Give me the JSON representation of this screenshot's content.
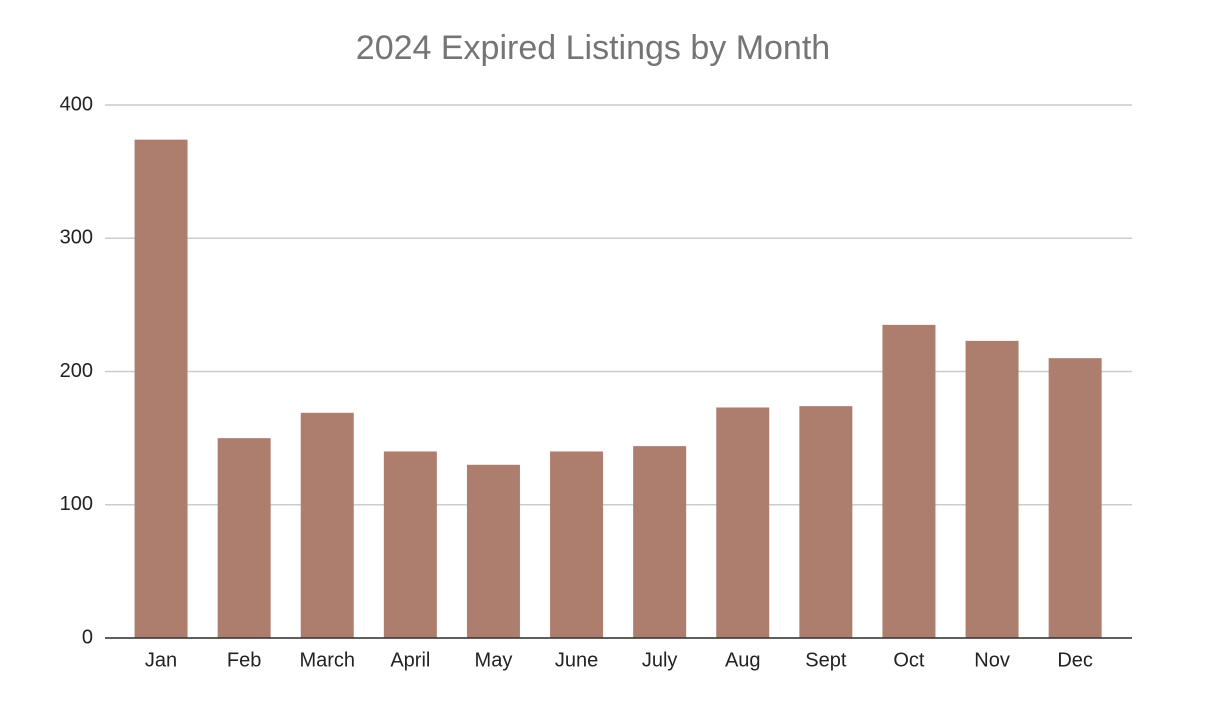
{
  "chart_data": {
    "type": "bar",
    "title": "2024 Expired Listings by Month",
    "categories": [
      "Jan",
      "Feb",
      "March",
      "April",
      "May",
      "June",
      "July",
      "Aug",
      "Sept",
      "Oct",
      "Nov",
      "Dec"
    ],
    "values": [
      374,
      150,
      169,
      140,
      130,
      140,
      144,
      173,
      174,
      235,
      223,
      210
    ],
    "color": "#ad7e6d",
    "ylim": [
      0,
      400
    ],
    "yticks": [
      0,
      100,
      200,
      300,
      400
    ],
    "grid": true
  }
}
